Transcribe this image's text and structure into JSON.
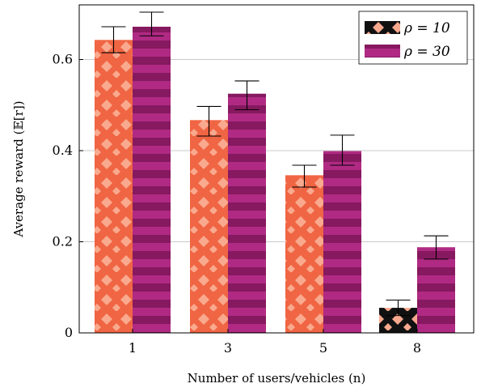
{
  "chart_data": {
    "type": "bar",
    "title": "",
    "xlabel": "Number of users/vehicles (n)",
    "ylabel": "Average reward (𝔼[r])",
    "categories": [
      "1",
      "3",
      "5",
      "8"
    ],
    "ylim": [
      0,
      0.72
    ],
    "yticks": [
      0,
      0.2,
      0.4,
      0.6
    ],
    "ytick_labels": [
      "0",
      "0.2",
      "0.4",
      "0.6"
    ],
    "grid": "horizontal",
    "legend_position": "top-right",
    "series": [
      {
        "name": "ρ = 10",
        "values": [
          0.643,
          0.467,
          0.346,
          0.055
        ],
        "err_low": [
          0.615,
          0.432,
          0.32,
          0.038
        ],
        "err_high": [
          0.672,
          0.497,
          0.368,
          0.072
        ],
        "color": "#f06543",
        "pattern_color": "#f9a98e"
      },
      {
        "name": "ρ = 30",
        "values": [
          0.672,
          0.525,
          0.399,
          0.188
        ],
        "err_low": [
          0.652,
          0.49,
          0.368,
          0.162
        ],
        "err_high": [
          0.704,
          0.553,
          0.434,
          0.213
        ],
        "color": "#b02a84",
        "pattern_color": "#86195f"
      }
    ]
  }
}
